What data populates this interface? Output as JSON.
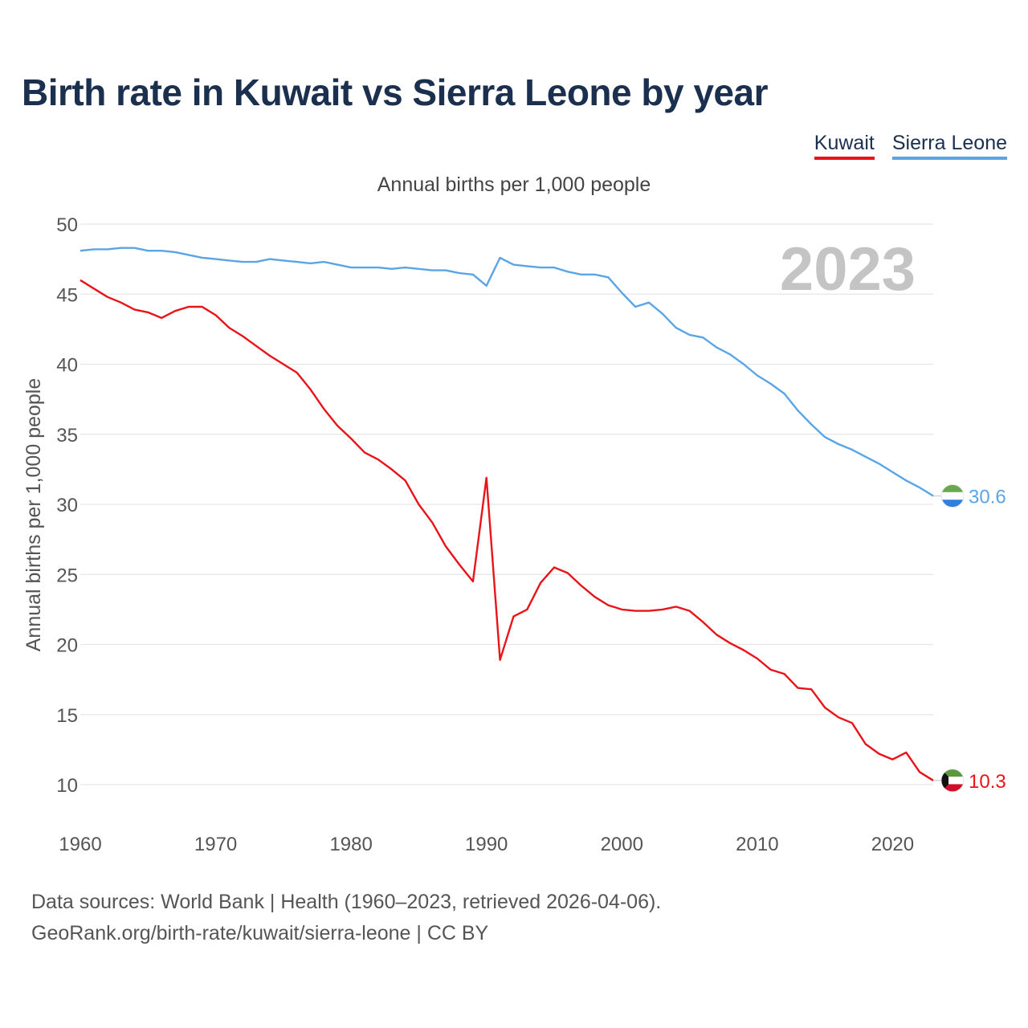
{
  "title": "Birth rate in Kuwait vs Sierra Leone by year",
  "legend": [
    {
      "label": "Kuwait",
      "color": "#e8141a"
    },
    {
      "label": "Sierra Leone",
      "color": "#5aa5e6"
    }
  ],
  "subtitle": "Annual births per 1,000 people",
  "footer": {
    "line1": "Data sources: World Bank | Health (1960–2023, retrieved 2026-04-06).",
    "line2": "GeoRank.org/birth-rate/kuwait/sierra-leone | CC BY"
  },
  "chart_data": {
    "type": "line",
    "title": "Birth rate in Kuwait vs Sierra Leone by year",
    "xlabel": "",
    "ylabel": "Annual births per 1,000 people",
    "year_label": "2023",
    "xlim": [
      1960,
      2023
    ],
    "ylim": [
      10,
      50
    ],
    "xticks": [
      1960,
      1970,
      1980,
      1990,
      2000,
      2010,
      2020
    ],
    "yticks": [
      10,
      15,
      20,
      25,
      30,
      35,
      40,
      45,
      50
    ],
    "grid": true,
    "series": [
      {
        "name": "Sierra Leone",
        "color": "#5aa5e6",
        "end_label": "30.6",
        "x_start": 1960,
        "values": [
          48.1,
          48.2,
          48.2,
          48.3,
          48.3,
          48.1,
          48.1,
          48.0,
          47.8,
          47.6,
          47.5,
          47.4,
          47.3,
          47.3,
          47.5,
          47.4,
          47.3,
          47.2,
          47.3,
          47.1,
          46.9,
          46.9,
          46.9,
          46.8,
          46.9,
          46.8,
          46.7,
          46.7,
          46.5,
          46.4,
          45.6,
          47.6,
          47.1,
          47.0,
          46.9,
          46.9,
          46.6,
          46.4,
          46.4,
          46.2,
          45.1,
          44.1,
          44.4,
          43.6,
          42.6,
          42.1,
          41.9,
          41.2,
          40.7,
          40.0,
          39.2,
          38.6,
          37.9,
          36.7,
          35.7,
          34.8,
          34.3,
          33.9,
          33.4,
          32.9,
          32.3,
          31.7,
          31.2,
          30.6
        ]
      },
      {
        "name": "Kuwait",
        "color": "#e8141a",
        "end_label": "10.3",
        "x_start": 1960,
        "values": [
          46.0,
          45.4,
          44.8,
          44.4,
          43.9,
          43.7,
          43.3,
          43.8,
          44.1,
          44.1,
          43.5,
          42.6,
          42.0,
          41.3,
          40.6,
          40.0,
          39.4,
          38.2,
          36.8,
          35.6,
          34.7,
          33.7,
          33.2,
          32.5,
          31.7,
          30.0,
          28.7,
          27.0,
          25.7,
          24.5,
          31.9,
          18.9,
          22.0,
          22.5,
          24.4,
          25.5,
          25.1,
          24.2,
          23.4,
          22.8,
          22.5,
          22.4,
          22.4,
          22.5,
          22.7,
          22.4,
          21.6,
          20.7,
          20.1,
          19.6,
          19.0,
          18.2,
          17.9,
          16.9,
          16.8,
          15.5,
          14.8,
          14.4,
          12.9,
          12.2,
          11.8,
          12.3,
          10.9,
          10.3
        ]
      }
    ]
  }
}
